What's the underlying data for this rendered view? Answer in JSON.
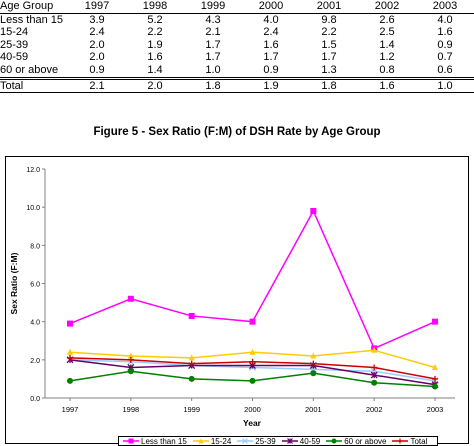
{
  "table": {
    "headers": [
      "Age Group",
      "1997",
      "1998",
      "1999",
      "2000",
      "2001",
      "2002",
      "2003"
    ],
    "rows": [
      [
        "Less than 15",
        "3.9",
        "5.2",
        "4.3",
        "4.0",
        "9.8",
        "2.6",
        "4.0"
      ],
      [
        "15-24",
        "2.4",
        "2.2",
        "2.1",
        "2.4",
        "2.2",
        "2.5",
        "1.6"
      ],
      [
        "25-39",
        "2.0",
        "1.9",
        "1.7",
        "1.6",
        "1.5",
        "1.4",
        "0.9"
      ],
      [
        "40-59",
        "2.0",
        "1.6",
        "1.7",
        "1.7",
        "1.7",
        "1.2",
        "0.7"
      ],
      [
        "60 or above",
        "0.9",
        "1.4",
        "1.0",
        "0.9",
        "1.3",
        "0.8",
        "0.6"
      ],
      [
        "Total",
        "2.1",
        "2.0",
        "1.8",
        "1.9",
        "1.8",
        "1.6",
        "1.0"
      ]
    ]
  },
  "chart_data": {
    "type": "line",
    "title": "Figure 5 - Sex Ratio (F:M) of DSH Rate by Age Group",
    "xlabel": "Year",
    "ylabel": "Sex Ratio (F:M)",
    "categories": [
      "1997",
      "1998",
      "1999",
      "2000",
      "2001",
      "2002",
      "2003"
    ],
    "ylim": [
      0,
      12
    ],
    "yticks": [
      "0.0",
      "2.0",
      "4.0",
      "6.0",
      "8.0",
      "10.0",
      "12.0"
    ],
    "grid": false,
    "legend_position": "bottom",
    "series": [
      {
        "name": "Less than 15",
        "values": [
          3.9,
          5.2,
          4.3,
          4.0,
          9.8,
          2.6,
          4.0
        ],
        "color": "#ff00ff",
        "marker": "square"
      },
      {
        "name": "15-24",
        "values": [
          2.4,
          2.2,
          2.1,
          2.4,
          2.2,
          2.5,
          1.6
        ],
        "color": "#ffcc00",
        "marker": "triangle"
      },
      {
        "name": "25-39",
        "values": [
          2.0,
          1.9,
          1.7,
          1.6,
          1.5,
          1.4,
          0.9
        ],
        "color": "#99ccff",
        "marker": "x"
      },
      {
        "name": "40-59",
        "values": [
          2.0,
          1.6,
          1.7,
          1.7,
          1.7,
          1.2,
          0.7
        ],
        "color": "#660066",
        "marker": "star"
      },
      {
        "name": "60 or above",
        "values": [
          0.9,
          1.4,
          1.0,
          0.9,
          1.3,
          0.8,
          0.6
        ],
        "color": "#008000",
        "marker": "circle"
      },
      {
        "name": "Total",
        "values": [
          2.1,
          2.0,
          1.8,
          1.9,
          1.8,
          1.6,
          1.0
        ],
        "color": "#cc0000",
        "marker": "plus"
      }
    ]
  }
}
